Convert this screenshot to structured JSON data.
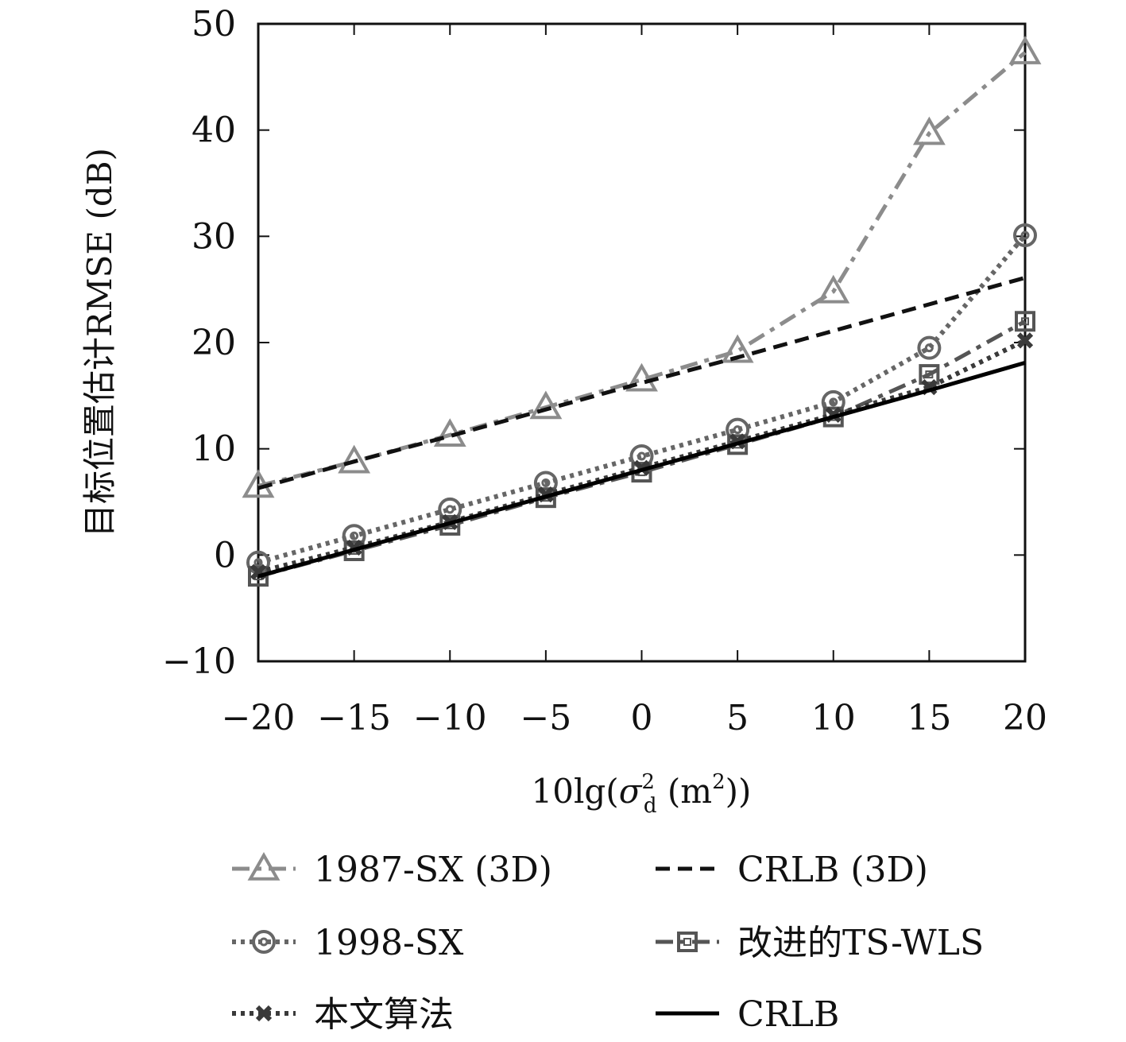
{
  "chart_data": {
    "type": "line",
    "title": "",
    "xlabel_parts": {
      "prefix": "10lg(",
      "sigma": "σ",
      "sub": "d",
      "sup": "2",
      "unit_open": " (m",
      "unit_sup": "2",
      "close": "))"
    },
    "ylabel": "目标位置估计RMSE (dB)",
    "xlim": [
      -20,
      20
    ],
    "ylim": [
      -10,
      50
    ],
    "xticks": [
      -20,
      -15,
      -10,
      -5,
      0,
      5,
      10,
      15,
      20
    ],
    "yticks": [
      -10,
      0,
      10,
      20,
      30,
      40,
      50
    ],
    "x": [
      -20,
      -15,
      -10,
      -5,
      0,
      5,
      10,
      15,
      20
    ],
    "grid": false,
    "legend_position": "bottom",
    "series": [
      {
        "name": "1987-SX (3D)",
        "marker": "triangle",
        "dash": "dashdot",
        "color": "#8c8c8c",
        "width": 5,
        "values": [
          6.5,
          8.8,
          11.3,
          13.9,
          16.5,
          19.2,
          24.8,
          39.7,
          47.3
        ]
      },
      {
        "name": "CRLB (3D)",
        "marker": "none",
        "dash": "dashed",
        "color": "#111111",
        "width": 5,
        "values": [
          6.3,
          8.8,
          11.2,
          13.7,
          16.2,
          18.6,
          21.1,
          23.6,
          26.1
        ]
      },
      {
        "name": "1998-SX",
        "marker": "circle",
        "dash": "dotted",
        "color": "#666666",
        "width": 6,
        "values": [
          -0.7,
          1.8,
          4.3,
          6.8,
          9.3,
          11.8,
          14.4,
          19.5,
          30.1
        ]
      },
      {
        "name": "改进的TS-WLS",
        "marker": "square",
        "dash": "dashdot",
        "color": "#555555",
        "width": 5,
        "values": [
          -2.0,
          0.4,
          2.8,
          5.4,
          7.8,
          10.4,
          13.0,
          17.0,
          22.0
        ]
      },
      {
        "name": "本文算法",
        "marker": "x",
        "dash": "dotted",
        "color": "#3a3a3a",
        "width": 6,
        "values": [
          -1.6,
          0.7,
          3.1,
          5.7,
          8.2,
          10.7,
          13.2,
          15.8,
          20.2
        ]
      },
      {
        "name": "CRLB",
        "marker": "none",
        "dash": "solid",
        "color": "#000000",
        "width": 5,
        "values": [
          -2.0,
          0.5,
          3.0,
          5.5,
          8.0,
          10.5,
          13.0,
          15.5,
          18.1
        ]
      }
    ]
  }
}
